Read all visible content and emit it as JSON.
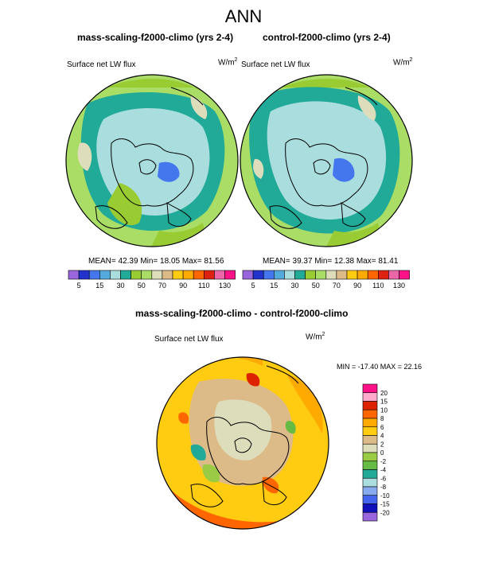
{
  "title": "ANN",
  "colors": {
    "palette": [
      "#9966dd",
      "#2233cc",
      "#4477ee",
      "#55aadd",
      "#aadddd",
      "#22aa99",
      "#99cc33",
      "#aadd66",
      "#ddddbb",
      "#ddbb88",
      "#ffcc11",
      "#ffaa00",
      "#ff6600",
      "#dd2211",
      "#ee66aa",
      "#ff1188"
    ],
    "diff_palette": [
      "#9966dd",
      "#1111bb",
      "#4466ee",
      "#88aaee",
      "#aadddd",
      "#22aa99",
      "#66bb44",
      "#99cc44",
      "#ddddbb",
      "#ddbb88",
      "#ffcc11",
      "#ffaa00",
      "#ff6600",
      "#dd2200",
      "#ffaacc",
      "#ff1188"
    ]
  },
  "panels": [
    {
      "title": "mass-scaling-f2000-climo (yrs 2-4)",
      "variable": "Surface net LW flux",
      "units": "W/m",
      "units_sup": "2",
      "stats": "MEAN=  42.39  Min=  18.05  Max=  81.56"
    },
    {
      "title": "control-f2000-climo (yrs 2-4)",
      "variable": "Surface net LW flux",
      "units": "W/m",
      "units_sup": "2",
      "stats": "MEAN=  39.37  Min=  12.38  Max=  81.41"
    },
    {
      "title": "mass-scaling-f2000-climo - control-f2000-climo",
      "variable": "Surface net LW flux",
      "units": "W/m",
      "units_sup": "2",
      "stats": "MIN = -17.40 MAX =  22.16"
    }
  ],
  "colorbar_top": {
    "labels": [
      "5",
      "15",
      "30",
      "50",
      "70",
      "90",
      "110",
      "130"
    ]
  },
  "colorbar_diff": {
    "labels": [
      "20",
      "15",
      "10",
      "8",
      "6",
      "4",
      "2",
      "0",
      "-2",
      "-4",
      "-6",
      "-8",
      "-10",
      "-15",
      "-20"
    ]
  }
}
